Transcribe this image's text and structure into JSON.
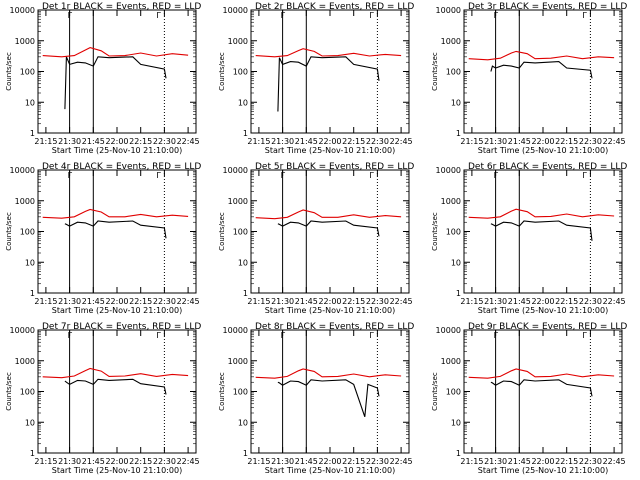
{
  "chart_data": [
    {
      "type": "line",
      "title": "Det 1r BLACK = Events, RED = LLD",
      "detector": "1r",
      "xlabel": "Start Time (25-Nov-10 21:10:00)",
      "ylabel": "Counts/sec",
      "yscale": "log",
      "ylim": [
        1,
        10000
      ],
      "x_ticks": [
        "21:15",
        "21:30",
        "21:45",
        "22:00",
        "22:15",
        "22:30",
        "22:45"
      ],
      "y_ticks": [
        "1",
        "10",
        "100",
        "1000",
        "10000"
      ],
      "solid_markers": [
        "21:30",
        "21:45"
      ],
      "dotted_markers": [
        "22:30"
      ],
      "top_annotation": "Г",
      "series": [
        {
          "name": "Events",
          "color": "#000000",
          "x": [
            "21:27",
            "21:28",
            "21:30",
            "21:35",
            "21:40",
            "21:45",
            "21:48",
            "21:55",
            "22:10",
            "22:15",
            "22:30",
            "22:31"
          ],
          "y": [
            6,
            300,
            170,
            200,
            190,
            150,
            300,
            280,
            300,
            170,
            120,
            60
          ]
        },
        {
          "name": "LLD",
          "color": "#e00000",
          "x": [
            "21:13",
            "21:25",
            "21:33",
            "21:40",
            "21:43",
            "21:50",
            "21:55",
            "22:05",
            "22:15",
            "22:25",
            "22:35",
            "22:45"
          ],
          "y": [
            330,
            300,
            330,
            500,
            600,
            470,
            320,
            330,
            400,
            320,
            380,
            340
          ]
        }
      ]
    },
    {
      "type": "line",
      "title": "Det 2r BLACK = Events, RED = LLD",
      "detector": "2r",
      "xlabel": "Start Time (25-Nov-10 21:10:00)",
      "ylabel": "Counts/sec",
      "yscale": "log",
      "ylim": [
        1,
        10000
      ],
      "x_ticks": [
        "21:15",
        "21:30",
        "21:45",
        "22:00",
        "22:15",
        "22:30",
        "22:45"
      ],
      "y_ticks": [
        "1",
        "10",
        "100",
        "1000",
        "10000"
      ],
      "solid_markers": [
        "21:30",
        "21:45"
      ],
      "dotted_markers": [
        "22:30"
      ],
      "top_annotation": "Г",
      "series": [
        {
          "name": "Events",
          "color": "#000000",
          "x": [
            "21:27",
            "21:28",
            "21:30",
            "21:35",
            "21:40",
            "21:45",
            "21:48",
            "21:55",
            "22:10",
            "22:15",
            "22:30",
            "22:31"
          ],
          "y": [
            5,
            280,
            170,
            210,
            200,
            150,
            300,
            280,
            300,
            170,
            120,
            50
          ]
        },
        {
          "name": "LLD",
          "color": "#e00000",
          "x": [
            "21:13",
            "21:25",
            "21:33",
            "21:40",
            "21:43",
            "21:50",
            "21:55",
            "22:05",
            "22:15",
            "22:25",
            "22:35",
            "22:45"
          ],
          "y": [
            330,
            300,
            330,
            480,
            550,
            450,
            320,
            330,
            390,
            320,
            360,
            330
          ]
        }
      ]
    },
    {
      "type": "line",
      "title": "Det 3r BLACK = Events, RED = LLD",
      "detector": "3r",
      "xlabel": "Start Time (25-Nov-10 21:10:00)",
      "ylabel": "Counts/sec",
      "yscale": "log",
      "ylim": [
        1,
        10000
      ],
      "x_ticks": [
        "21:15",
        "21:30",
        "21:45",
        "22:00",
        "22:15",
        "22:30",
        "22:45"
      ],
      "y_ticks": [
        "1",
        "10",
        "100",
        "1000",
        "10000"
      ],
      "solid_markers": [
        "21:30",
        "21:45"
      ],
      "dotted_markers": [
        "22:30"
      ],
      "top_annotation": "Г",
      "series": [
        {
          "name": "Events",
          "color": "#000000",
          "x": [
            "21:27",
            "21:28",
            "21:30",
            "21:35",
            "21:40",
            "21:45",
            "21:48",
            "21:55",
            "22:10",
            "22:15",
            "22:30",
            "22:31"
          ],
          "y": [
            100,
            150,
            130,
            160,
            150,
            130,
            200,
            190,
            210,
            130,
            110,
            60
          ]
        },
        {
          "name": "LLD",
          "color": "#e00000",
          "x": [
            "21:13",
            "21:25",
            "21:33",
            "21:40",
            "21:43",
            "21:50",
            "21:55",
            "22:05",
            "22:15",
            "22:25",
            "22:35",
            "22:45"
          ],
          "y": [
            260,
            240,
            270,
            400,
            450,
            380,
            260,
            270,
            320,
            260,
            300,
            280
          ]
        }
      ]
    },
    {
      "type": "line",
      "title": "Det 4r BLACK = Events, RED = LLD",
      "detector": "4r",
      "xlabel": "Start Time (25-Nov-10 21:10:00)",
      "ylabel": "Counts/sec",
      "yscale": "log",
      "ylim": [
        1,
        10000
      ],
      "x_ticks": [
        "21:15",
        "21:30",
        "21:45",
        "22:00",
        "22:15",
        "22:30",
        "22:45"
      ],
      "y_ticks": [
        "1",
        "10",
        "100",
        "1000",
        "10000"
      ],
      "solid_markers": [
        "21:30",
        "21:45"
      ],
      "dotted_markers": [
        "22:30"
      ],
      "top_annotation": "Г",
      "series": [
        {
          "name": "Events",
          "color": "#000000",
          "x": [
            "21:27",
            "21:28",
            "21:30",
            "21:35",
            "21:40",
            "21:45",
            "21:48",
            "21:55",
            "22:10",
            "22:15",
            "22:30",
            "22:31"
          ],
          "y": [
            180,
            170,
            150,
            200,
            190,
            150,
            220,
            200,
            220,
            160,
            130,
            60
          ]
        },
        {
          "name": "LLD",
          "color": "#e00000",
          "x": [
            "21:13",
            "21:25",
            "21:33",
            "21:40",
            "21:43",
            "21:50",
            "21:55",
            "22:05",
            "22:15",
            "22:25",
            "22:35",
            "22:45"
          ],
          "y": [
            290,
            270,
            300,
            450,
            520,
            430,
            300,
            300,
            360,
            300,
            340,
            310
          ]
        }
      ]
    },
    {
      "type": "line",
      "title": "Det 5r BLACK = Events, RED = LLD",
      "detector": "5r",
      "xlabel": "Start Time (25-Nov-10 21:10:00)",
      "ylabel": "Counts/sec",
      "yscale": "log",
      "ylim": [
        1,
        10000
      ],
      "x_ticks": [
        "21:15",
        "21:30",
        "21:45",
        "22:00",
        "22:15",
        "22:30",
        "22:45"
      ],
      "y_ticks": [
        "1",
        "10",
        "100",
        "1000",
        "10000"
      ],
      "solid_markers": [
        "21:30",
        "21:45"
      ],
      "dotted_markers": [
        "22:30"
      ],
      "top_annotation": "Г",
      "series": [
        {
          "name": "Events",
          "color": "#000000",
          "x": [
            "21:27",
            "21:28",
            "21:30",
            "21:35",
            "21:40",
            "21:45",
            "21:48",
            "21:55",
            "22:10",
            "22:15",
            "22:30",
            "22:31"
          ],
          "y": [
            180,
            170,
            150,
            200,
            190,
            150,
            220,
            200,
            220,
            160,
            130,
            70
          ]
        },
        {
          "name": "LLD",
          "color": "#e00000",
          "x": [
            "21:13",
            "21:25",
            "21:33",
            "21:40",
            "21:43",
            "21:50",
            "21:55",
            "22:05",
            "22:15",
            "22:25",
            "22:35",
            "22:45"
          ],
          "y": [
            280,
            260,
            290,
            430,
            500,
            410,
            290,
            290,
            350,
            290,
            330,
            300
          ]
        }
      ]
    },
    {
      "type": "line",
      "title": "Det 6r BLACK = Events, RED = LLD",
      "detector": "6r",
      "xlabel": "Start Time (25-Nov-10 21:10:00)",
      "ylabel": "Counts/sec",
      "yscale": "log",
      "ylim": [
        1,
        10000
      ],
      "x_ticks": [
        "21:15",
        "21:30",
        "21:45",
        "22:00",
        "22:15",
        "22:30",
        "22:45"
      ],
      "y_ticks": [
        "1",
        "10",
        "100",
        "1000",
        "10000"
      ],
      "solid_markers": [
        "21:30",
        "21:45"
      ],
      "dotted_markers": [
        "22:30"
      ],
      "top_annotation": "Г",
      "series": [
        {
          "name": "Events",
          "color": "#000000",
          "x": [
            "21:27",
            "21:28",
            "21:30",
            "21:35",
            "21:40",
            "21:45",
            "21:48",
            "21:55",
            "22:10",
            "22:15",
            "22:30",
            "22:31"
          ],
          "y": [
            180,
            170,
            150,
            200,
            190,
            150,
            220,
            200,
            220,
            160,
            130,
            50
          ]
        },
        {
          "name": "LLD",
          "color": "#e00000",
          "x": [
            "21:13",
            "21:25",
            "21:33",
            "21:40",
            "21:43",
            "21:50",
            "21:55",
            "22:05",
            "22:15",
            "22:25",
            "22:35",
            "22:45"
          ],
          "y": [
            290,
            270,
            300,
            460,
            530,
            440,
            300,
            310,
            370,
            300,
            350,
            320
          ]
        }
      ]
    },
    {
      "type": "line",
      "title": "Det 7r BLACK = Events, RED = LLD",
      "detector": "7r",
      "xlabel": "Start Time (25-Nov-10 21:10:00)",
      "ylabel": "Counts/sec",
      "yscale": "log",
      "ylim": [
        1,
        10000
      ],
      "x_ticks": [
        "21:15",
        "21:30",
        "21:45",
        "22:00",
        "22:15",
        "22:30",
        "22:45"
      ],
      "y_ticks": [
        "1",
        "10",
        "100",
        "1000",
        "10000"
      ],
      "solid_markers": [
        "21:30",
        "21:45"
      ],
      "dotted_markers": [
        "22:30"
      ],
      "top_annotation": "Г",
      "series": [
        {
          "name": "Events",
          "color": "#000000",
          "x": [
            "21:27",
            "21:28",
            "21:30",
            "21:35",
            "21:40",
            "21:45",
            "21:48",
            "21:55",
            "22:10",
            "22:15",
            "22:30",
            "22:31"
          ],
          "y": [
            220,
            200,
            170,
            230,
            220,
            170,
            250,
            230,
            250,
            180,
            140,
            80
          ]
        },
        {
          "name": "LLD",
          "color": "#e00000",
          "x": [
            "21:13",
            "21:25",
            "21:33",
            "21:40",
            "21:43",
            "21:50",
            "21:55",
            "22:05",
            "22:15",
            "22:25",
            "22:35",
            "22:45"
          ],
          "y": [
            300,
            280,
            320,
            480,
            560,
            460,
            310,
            320,
            380,
            310,
            360,
            330
          ]
        }
      ]
    },
    {
      "type": "line",
      "title": "Det 8r BLACK = Events, RED = LLD",
      "detector": "8r",
      "xlabel": "Start Time (25-Nov-10 21:10:00)",
      "ylabel": "Counts/sec",
      "yscale": "log",
      "ylim": [
        1,
        10000
      ],
      "x_ticks": [
        "21:15",
        "21:30",
        "21:45",
        "22:00",
        "22:15",
        "22:30",
        "22:45"
      ],
      "y_ticks": [
        "1",
        "10",
        "100",
        "1000",
        "10000"
      ],
      "solid_markers": [
        "21:30",
        "21:45"
      ],
      "dotted_markers": [
        "22:30"
      ],
      "top_annotation": "Г",
      "series": [
        {
          "name": "Events",
          "color": "#000000",
          "x": [
            "21:27",
            "21:28",
            "21:30",
            "21:35",
            "21:40",
            "21:45",
            "21:48",
            "21:55",
            "22:10",
            "22:15",
            "22:22",
            "22:24",
            "22:30",
            "22:31"
          ],
          "y": [
            200,
            190,
            160,
            220,
            210,
            160,
            240,
            220,
            240,
            170,
            15,
            170,
            130,
            70
          ]
        },
        {
          "name": "LLD",
          "color": "#e00000",
          "x": [
            "21:13",
            "21:25",
            "21:33",
            "21:40",
            "21:43",
            "21:50",
            "21:55",
            "22:05",
            "22:15",
            "22:25",
            "22:35",
            "22:45"
          ],
          "y": [
            290,
            270,
            310,
            470,
            540,
            450,
            300,
            310,
            370,
            300,
            350,
            320
          ]
        }
      ]
    },
    {
      "type": "line",
      "title": "Det 9r BLACK = Events, RED = LLD",
      "detector": "9r",
      "xlabel": "Start Time (25-Nov-10 21:10:00)",
      "ylabel": "Counts/sec",
      "yscale": "log",
      "ylim": [
        1,
        10000
      ],
      "x_ticks": [
        "21:15",
        "21:30",
        "21:45",
        "22:00",
        "22:15",
        "22:30",
        "22:45"
      ],
      "y_ticks": [
        "1",
        "10",
        "100",
        "1000",
        "10000"
      ],
      "solid_markers": [
        "21:30",
        "21:45"
      ],
      "dotted_markers": [
        "22:30"
      ],
      "top_annotation": "Г",
      "series": [
        {
          "name": "Events",
          "color": "#000000",
          "x": [
            "21:27",
            "21:28",
            "21:30",
            "21:35",
            "21:40",
            "21:45",
            "21:48",
            "21:55",
            "22:10",
            "22:15",
            "22:30",
            "22:31"
          ],
          "y": [
            200,
            190,
            160,
            220,
            210,
            160,
            240,
            220,
            240,
            170,
            130,
            70
          ]
        },
        {
          "name": "LLD",
          "color": "#e00000",
          "x": [
            "21:13",
            "21:25",
            "21:33",
            "21:40",
            "21:43",
            "21:50",
            "21:55",
            "22:05",
            "22:15",
            "22:25",
            "22:35",
            "22:45"
          ],
          "y": [
            290,
            270,
            310,
            470,
            540,
            450,
            300,
            310,
            370,
            300,
            350,
            320
          ]
        }
      ]
    }
  ]
}
